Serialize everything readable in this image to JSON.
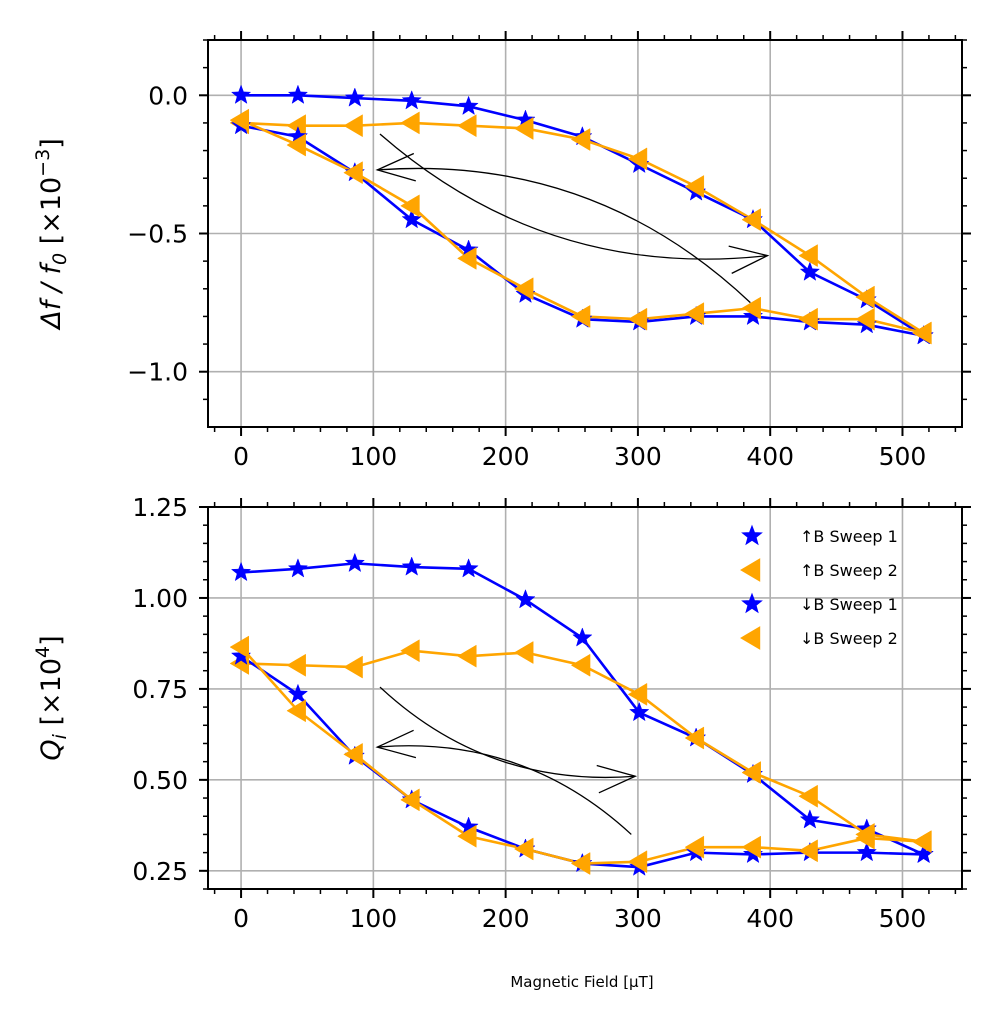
{
  "chart_data": [
    {
      "type": "line",
      "ylabel_main": "Δf / f",
      "ylabel_sub": "0",
      "ylabel_unit": " [×10",
      "ylabel_exp": "−3",
      "ylabel_close": "]",
      "xlim": [
        -25,
        545
      ],
      "ylim": [
        -1.2,
        0.2
      ],
      "grid": true,
      "xticks": [
        0,
        100,
        200,
        300,
        400,
        500
      ],
      "xtick_labels": [
        "0",
        "100",
        "200",
        "300",
        "400",
        "500"
      ],
      "yticks": [
        0.0,
        -0.5,
        -1.0
      ],
      "ytick_labels": [
        "0.0",
        "−0.5",
        "−1.0"
      ],
      "series": [
        {
          "name": "↑B Sweep 1",
          "color": "#0000ff",
          "marker": "star",
          "x": [
            0,
            43,
            86,
            129,
            172,
            215,
            258,
            301,
            344,
            387,
            430,
            473,
            516
          ],
          "y": [
            0.0,
            0.0,
            -0.01,
            -0.02,
            -0.04,
            -0.09,
            -0.15,
            -0.25,
            -0.35,
            -0.45,
            -0.64,
            -0.74,
            -0.87
          ]
        },
        {
          "name": "↑B Sweep 2",
          "color": "#ffa500",
          "marker": "triangle-left",
          "x": [
            0,
            43,
            86,
            129,
            172,
            215,
            258,
            301,
            344,
            387,
            430,
            473,
            516
          ],
          "y": [
            -0.1,
            -0.11,
            -0.11,
            -0.1,
            -0.11,
            -0.12,
            -0.16,
            -0.23,
            -0.33,
            -0.45,
            -0.58,
            -0.73,
            -0.86
          ]
        },
        {
          "name": "↓B Sweep 1",
          "color": "#0000ff",
          "marker": "star",
          "x": [
            516,
            473,
            430,
            387,
            344,
            301,
            258,
            215,
            172,
            129,
            86,
            43,
            0
          ],
          "y": [
            -0.87,
            -0.83,
            -0.82,
            -0.8,
            -0.8,
            -0.82,
            -0.81,
            -0.72,
            -0.56,
            -0.45,
            -0.28,
            -0.15,
            -0.11
          ]
        },
        {
          "name": "↓B Sweep 2",
          "color": "#ffa500",
          "marker": "triangle-left",
          "x": [
            516,
            473,
            430,
            387,
            344,
            301,
            258,
            215,
            172,
            129,
            86,
            43,
            0
          ],
          "y": [
            -0.86,
            -0.81,
            -0.81,
            -0.77,
            -0.79,
            -0.81,
            -0.8,
            -0.7,
            -0.59,
            -0.4,
            -0.28,
            -0.18,
            -0.09
          ]
        }
      ],
      "annotations": [
        {
          "type": "arrow",
          "direction": "increasing field",
          "from": [
            105,
            -0.14
          ],
          "to": [
            398,
            -0.58
          ]
        },
        {
          "type": "arrow",
          "direction": "decreasing field",
          "from": [
            385,
            -0.75
          ],
          "to": [
            103,
            -0.27
          ]
        }
      ]
    },
    {
      "type": "line",
      "ylabel_main": "Q",
      "ylabel_sub": "i",
      "ylabel_unit": " [×10",
      "ylabel_exp": "4",
      "ylabel_close": "]",
      "xlabel": "Magnetic Field [μT]",
      "xlim": [
        -25,
        545
      ],
      "ylim": [
        0.2,
        1.25
      ],
      "grid": true,
      "legend": "top-right",
      "xticks": [
        0,
        100,
        200,
        300,
        400,
        500
      ],
      "xtick_labels": [
        "0",
        "100",
        "200",
        "300",
        "400",
        "500"
      ],
      "yticks": [
        1.25,
        1.0,
        0.75,
        0.5,
        0.25
      ],
      "ytick_labels": [
        "1.25",
        "1.00",
        "0.75",
        "0.50",
        "0.25"
      ],
      "series": [
        {
          "name": "↑B Sweep 1",
          "color": "#0000ff",
          "marker": "star",
          "x": [
            0,
            43,
            86,
            129,
            172,
            215,
            258,
            301,
            344,
            387,
            430,
            473,
            516
          ],
          "y": [
            1.07,
            1.08,
            1.095,
            1.085,
            1.08,
            0.995,
            0.89,
            0.685,
            0.615,
            0.515,
            0.39,
            0.365,
            0.295
          ]
        },
        {
          "name": "↑B Sweep 2",
          "color": "#ffa500",
          "marker": "triangle-left",
          "x": [
            0,
            43,
            86,
            129,
            172,
            215,
            258,
            301,
            344,
            387,
            430,
            473,
            516
          ],
          "y": [
            0.82,
            0.815,
            0.81,
            0.855,
            0.84,
            0.85,
            0.815,
            0.735,
            0.615,
            0.52,
            0.455,
            0.35,
            0.33
          ]
        },
        {
          "name": "↓B Sweep 1",
          "color": "#0000ff",
          "marker": "star",
          "x": [
            516,
            473,
            430,
            387,
            344,
            301,
            258,
            215,
            172,
            129,
            86,
            43,
            0
          ],
          "y": [
            0.295,
            0.3,
            0.3,
            0.295,
            0.3,
            0.26,
            0.27,
            0.31,
            0.37,
            0.445,
            0.565,
            0.735,
            0.84
          ]
        },
        {
          "name": "↓B Sweep 2",
          "color": "#ffa500",
          "marker": "triangle-left",
          "x": [
            516,
            473,
            430,
            387,
            344,
            301,
            258,
            215,
            172,
            129,
            86,
            43,
            0
          ],
          "y": [
            0.33,
            0.34,
            0.305,
            0.315,
            0.315,
            0.275,
            0.27,
            0.31,
            0.345,
            0.445,
            0.57,
            0.69,
            0.865
          ]
        }
      ],
      "annotations": [
        {
          "type": "arrow",
          "direction": "increasing field",
          "from": [
            105,
            0.755
          ],
          "to": [
            298,
            0.51
          ]
        },
        {
          "type": "arrow",
          "direction": "decreasing field",
          "from": [
            295,
            0.35
          ],
          "to": [
            103,
            0.59
          ]
        }
      ]
    }
  ]
}
